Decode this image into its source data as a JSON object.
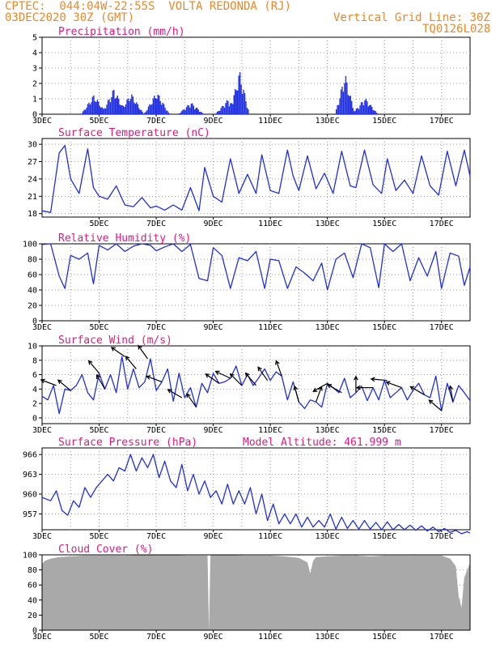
{
  "header": {
    "line1": "CPTEC:  044:04W-22:55S  VOLTA REDONDA (RJ)",
    "line2": "03DEC2020 30Z (GMT)",
    "grid_note": "Vertical Grid Line: 30Z",
    "code": "TQ0126L028",
    "model_altitude": "Model Altitude: 461.999 m"
  },
  "colors": {
    "header": "#e8892b",
    "title": "#e0197d",
    "line": "#1f2fe0",
    "bar": "#1f2fe0",
    "cloud": "#a9a9a9",
    "arrow": "#000000"
  },
  "chart_data": [
    {
      "type": "bar",
      "title": "Precipitation (mm/h)",
      "x_labels": [
        "3DEC",
        "5DEC",
        "7DEC",
        "9DEC",
        "11DEC",
        "13DEC",
        "15DEC",
        "17DEC"
      ],
      "x_positions_days": [
        0,
        2,
        4,
        6,
        8,
        10,
        12,
        14
      ],
      "xlim_days": [
        0,
        15
      ],
      "ylim": [
        0,
        5
      ],
      "yticks": [
        0,
        1,
        2,
        3,
        4,
        5
      ],
      "peaks": [
        {
          "day": 1.8,
          "value": 1.3
        },
        {
          "day": 2.5,
          "value": 1.7
        },
        {
          "day": 3.1,
          "value": 1.4
        },
        {
          "day": 4.0,
          "value": 1.5
        },
        {
          "day": 5.2,
          "value": 0.8
        },
        {
          "day": 6.5,
          "value": 1.0
        },
        {
          "day": 6.9,
          "value": 2.9
        },
        {
          "day": 10.6,
          "value": 2.7
        },
        {
          "day": 11.3,
          "value": 1.1
        }
      ]
    },
    {
      "type": "line",
      "title": "Surface Temperature (nC)",
      "x_labels": [
        "5DEC",
        "7DEC",
        "9DEC",
        "11DEC",
        "13DEC",
        "15DEC",
        "17DEC"
      ],
      "x_positions_days": [
        2,
        4,
        6,
        8,
        10,
        12,
        14
      ],
      "ylim": [
        17.4,
        31
      ],
      "yticks": [
        18,
        21,
        24,
        27,
        30
      ],
      "x": [
        0,
        0.3,
        0.6,
        0.8,
        1.0,
        1.3,
        1.6,
        1.8,
        2.0,
        2.3,
        2.6,
        2.9,
        3.2,
        3.5,
        3.8,
        4.0,
        4.3,
        4.6,
        4.9,
        5.2,
        5.5,
        5.7,
        6.0,
        6.3,
        6.6,
        6.9,
        7.2,
        7.5,
        7.7,
        8.0,
        8.3,
        8.6,
        8.8,
        9.0,
        9.3,
        9.6,
        9.9,
        10.2,
        10.5,
        10.8,
        11.0,
        11.3,
        11.6,
        11.9,
        12.1,
        12.4,
        12.7,
        13.0,
        13.3,
        13.6,
        13.9,
        14.2,
        14.5,
        14.8,
        15.0
      ],
      "values": [
        18.5,
        18.2,
        28.5,
        29.8,
        24,
        21.5,
        29.2,
        22.5,
        21,
        20.5,
        22.8,
        19.5,
        19.2,
        20.8,
        19,
        19.3,
        18.6,
        19.5,
        18.6,
        22.5,
        18.5,
        26,
        21,
        20,
        27.5,
        21.5,
        24.8,
        21.5,
        28.2,
        22,
        21.5,
        29,
        24.5,
        22,
        28,
        22.3,
        25,
        21.5,
        28.8,
        22.8,
        22.5,
        29,
        23,
        21.5,
        27.5,
        22,
        23.8,
        21.5,
        28,
        22.8,
        21.2,
        28.8,
        22.8,
        29,
        24.5
      ]
    },
    {
      "type": "line",
      "title": "Relative Humidity (%)",
      "x_labels": [
        "3DEC",
        "5DEC",
        "7DEC",
        "9DEC",
        "11DEC",
        "13DEC",
        "15DEC",
        "17DEC"
      ],
      "x_positions_days": [
        0,
        2,
        4,
        6,
        8,
        10,
        12,
        14
      ],
      "ylim": [
        0,
        100
      ],
      "yticks": [
        0,
        20,
        40,
        60,
        80,
        100
      ],
      "x": [
        0,
        0.3,
        0.6,
        0.8,
        1.0,
        1.3,
        1.6,
        1.8,
        2.0,
        2.3,
        2.6,
        2.9,
        3.2,
        3.5,
        3.8,
        4.0,
        4.3,
        4.6,
        4.9,
        5.2,
        5.5,
        5.8,
        6.0,
        6.3,
        6.6,
        6.9,
        7.2,
        7.5,
        7.8,
        8.0,
        8.3,
        8.6,
        8.9,
        9.2,
        9.5,
        9.8,
        10.0,
        10.3,
        10.6,
        10.9,
        11.2,
        11.5,
        11.8,
        12.0,
        12.3,
        12.6,
        12.9,
        13.2,
        13.5,
        13.8,
        14.0,
        14.3,
        14.6,
        14.8,
        15.0
      ],
      "values": [
        99,
        100,
        58,
        42,
        85,
        80,
        88,
        48,
        98,
        92,
        100,
        90,
        97,
        100,
        98,
        91,
        96,
        100,
        90,
        99,
        55,
        52,
        95,
        85,
        42,
        82,
        78,
        90,
        42,
        80,
        78,
        42,
        70,
        62,
        52,
        75,
        40,
        80,
        88,
        56,
        100,
        95,
        43,
        100,
        90,
        100,
        52,
        82,
        58,
        90,
        42,
        88,
        84,
        46,
        70
      ]
    },
    {
      "type": "line",
      "title": "Surface Wind (m/s)",
      "x_labels": [
        "3DEC",
        "5DEC",
        "7DEC",
        "9DEC",
        "11DEC",
        "13DEC",
        "15DEC",
        "17DEC"
      ],
      "x_positions_days": [
        0,
        2,
        4,
        6,
        8,
        10,
        12,
        14
      ],
      "ylim": [
        -0.8,
        10
      ],
      "yticks": [
        0,
        2,
        4,
        6,
        8,
        10
      ],
      "x": [
        0,
        0.2,
        0.4,
        0.6,
        0.8,
        1.0,
        1.2,
        1.4,
        1.6,
        1.8,
        2.0,
        2.2,
        2.4,
        2.6,
        2.8,
        3.0,
        3.2,
        3.4,
        3.6,
        3.8,
        4.0,
        4.2,
        4.4,
        4.6,
        4.8,
        5.0,
        5.2,
        5.4,
        5.6,
        5.8,
        6.0,
        6.2,
        6.4,
        6.6,
        6.8,
        7.0,
        7.2,
        7.4,
        7.6,
        7.8,
        8.0,
        8.2,
        8.4,
        8.6,
        8.8,
        9.0,
        9.2,
        9.4,
        9.6,
        9.8,
        10.0,
        10.2,
        10.4,
        10.6,
        10.8,
        11.0,
        11.2,
        11.4,
        11.6,
        11.8,
        12.0,
        12.2,
        12.4,
        12.6,
        12.8,
        13.0,
        13.2,
        13.4,
        13.6,
        13.8,
        14.0,
        14.2,
        14.4,
        14.6,
        14.8,
        15.0
      ],
      "values": [
        3,
        2.5,
        4.5,
        0.6,
        4,
        3.8,
        4.5,
        6,
        3.5,
        2.5,
        6.2,
        4,
        6,
        3.5,
        8.5,
        4,
        6.8,
        4.2,
        5,
        8.2,
        3.8,
        5,
        6.8,
        2.3,
        6.2,
        2.8,
        4.2,
        1.5,
        4.8,
        3.5,
        6.2,
        4.8,
        5,
        5.5,
        7.2,
        4.5,
        6,
        4.5,
        5.6,
        6.8,
        5.2,
        6.4,
        5.8,
        2.5,
        5,
        2.2,
        1.3,
        2.5,
        2.2,
        1.5,
        4.8,
        4.2,
        3.5,
        5.5,
        2.8,
        3.5,
        4.4,
        2.4,
        4.2,
        2.5,
        5.2,
        2.8,
        3.5,
        4.2,
        2.5,
        3.8,
        4.8,
        3.2,
        2.8,
        5.8,
        1,
        4.8,
        2.2,
        4.5,
        3.5,
        2.4
      ]
    },
    {
      "type": "line",
      "title": "Surface Pressure (hPa)",
      "x_labels": [
        "3DEC",
        "5DEC",
        "7DEC",
        "9DEC",
        "11DEC",
        "13DEC",
        "15DEC",
        "17DEC"
      ],
      "x_positions_days": [
        0,
        2,
        4,
        6,
        8,
        10,
        12,
        14
      ],
      "ylim": [
        954.6,
        967
      ],
      "yticks": [
        957,
        960,
        963,
        966
      ],
      "x": [
        0,
        0.3,
        0.5,
        0.7,
        0.9,
        1.1,
        1.3,
        1.5,
        1.7,
        1.9,
        2.1,
        2.3,
        2.5,
        2.7,
        2.9,
        3.1,
        3.3,
        3.5,
        3.7,
        3.9,
        4.1,
        4.3,
        4.5,
        4.7,
        4.9,
        5.1,
        5.3,
        5.5,
        5.7,
        5.9,
        6.1,
        6.3,
        6.5,
        6.7,
        6.9,
        7.1,
        7.3,
        7.5,
        7.7,
        7.9,
        8.1,
        8.3,
        8.5,
        8.7,
        8.9,
        9.1,
        9.3,
        9.5,
        9.7,
        9.9,
        10.1,
        10.3,
        10.5,
        10.7,
        10.9,
        11.1,
        11.3,
        11.5,
        11.7,
        11.9,
        12.1,
        12.3,
        12.5,
        12.7,
        12.9,
        13.1,
        13.3,
        13.5,
        13.7,
        13.9,
        14.1,
        14.3,
        14.5,
        14.7,
        14.9,
        15.0
      ],
      "values": [
        959.5,
        959,
        960.5,
        957.5,
        956.8,
        959,
        958,
        961,
        959.5,
        961,
        962,
        963,
        962,
        964,
        963.5,
        966,
        963.5,
        965.5,
        964,
        966,
        962.5,
        965,
        962,
        961,
        964.5,
        960.5,
        963,
        960,
        962,
        959.5,
        960.5,
        958.5,
        961.5,
        958.5,
        960.5,
        958.5,
        961,
        957,
        960,
        956,
        958.5,
        955.5,
        957,
        955.5,
        957,
        955,
        956.5,
        955,
        956,
        955,
        957,
        954.7,
        956.5,
        954.8,
        956,
        954.7,
        956,
        954.7,
        955.7,
        954.6,
        955.8,
        954.6,
        955.4,
        954.6,
        955.3,
        954.5,
        955.2,
        954.4,
        955,
        954.3,
        954.8,
        954.2,
        954.5,
        954,
        954.3,
        954.1
      ]
    },
    {
      "type": "area",
      "title": "Cloud Cover (%)",
      "x_labels": [
        "3DEC",
        "5DEC",
        "7DEC",
        "9DEC",
        "11DEC",
        "13DEC",
        "15DEC",
        "17DEC"
      ],
      "x_positions_days": [
        0,
        2,
        4,
        6,
        8,
        10,
        12,
        14
      ],
      "ylim": [
        0,
        100
      ],
      "yticks": [
        0,
        20,
        40,
        60,
        80,
        100
      ],
      "x": [
        0,
        0.1,
        0.3,
        0.6,
        1.0,
        1.5,
        2.0,
        2.5,
        3.0,
        3.5,
        4.0,
        4.5,
        5.0,
        5.5,
        5.8,
        5.85,
        5.9,
        6.0,
        6.5,
        7.0,
        7.5,
        8.0,
        8.5,
        9.0,
        9.3,
        9.4,
        9.5,
        9.6,
        10.0,
        10.5,
        11.0,
        11.5,
        12.0,
        12.5,
        13.0,
        13.5,
        14.0,
        14.3,
        14.5,
        14.6,
        14.7,
        14.8,
        14.9,
        15.0
      ],
      "values": [
        88,
        92,
        95,
        97,
        98,
        99,
        99,
        99,
        99,
        100,
        100,
        100,
        99,
        99,
        99,
        0,
        99,
        100,
        100,
        99,
        99,
        99,
        98,
        96,
        90,
        75,
        92,
        97,
        98,
        99,
        99,
        98,
        99,
        99,
        99,
        99,
        99,
        95,
        85,
        45,
        30,
        70,
        80,
        90
      ]
    }
  ],
  "wind_arrows": {
    "x": [
      0.5,
      1.0,
      2.0,
      2.2,
      2.9,
      3.3,
      3.7,
      4.2,
      4.9,
      5.4,
      6.2,
      6.6,
      7.0,
      7.5,
      7.9,
      8.4,
      9.0,
      9.6,
      10.0,
      10.5,
      11.0,
      11.6,
      12.1,
      12.6,
      13.4,
      14.0,
      14.4
    ],
    "from_angle_deg": [
      200,
      220,
      230,
      240,
      215,
      230,
      235,
      200,
      210,
      235,
      215,
      205,
      225,
      230,
      235,
      250,
      255,
      290,
      150,
      210,
      270,
      180,
      185,
      200,
      210,
      220,
      260
    ]
  }
}
